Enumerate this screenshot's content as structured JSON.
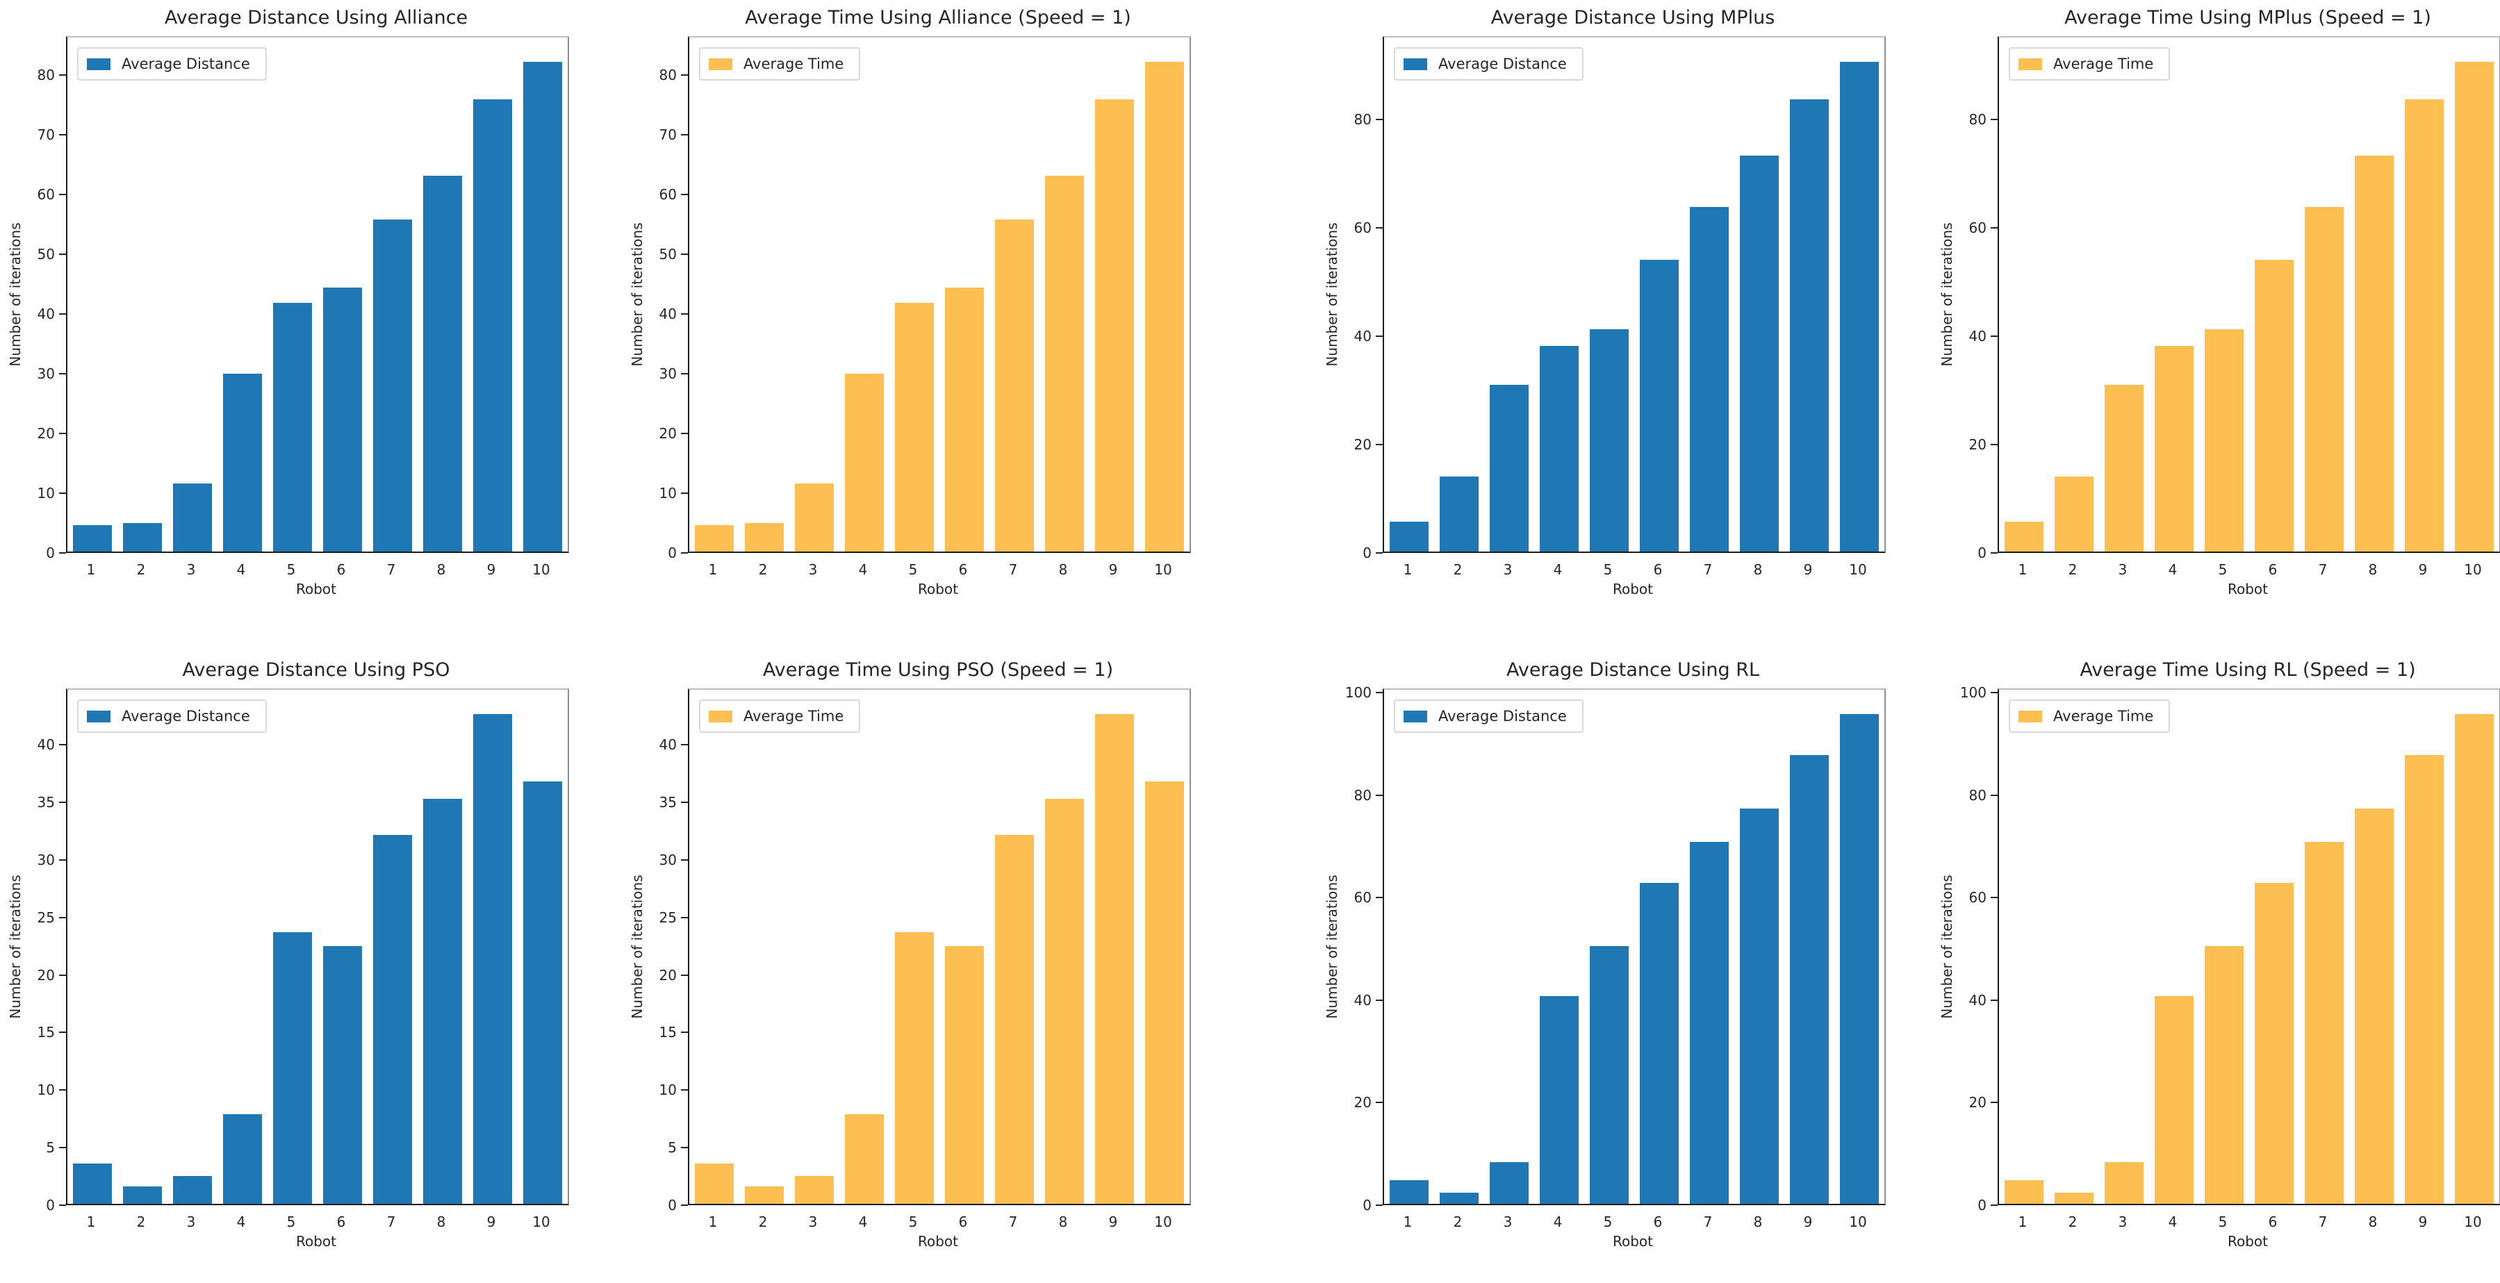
{
  "figure": {
    "background": "#ffffff",
    "text_color": "#262626",
    "spine_color": "#1c1c1c"
  },
  "colors": {
    "distance_blue": "#1f77b4",
    "time_orange": "#fdbf52"
  },
  "chart_data": [
    {
      "id": "alliance-distance",
      "type": "bar",
      "title": "Average Distance Using Alliance",
      "legend": "Average Distance",
      "legend_position": "upper left",
      "color": "#1f77b4",
      "xlabel": "Robot",
      "ylabel": "Number of iterations",
      "categories": [
        "1",
        "2",
        "3",
        "4",
        "5",
        "6",
        "7",
        "8",
        "9",
        "10"
      ],
      "values": [
        4.4,
        4.8,
        11.4,
        29.9,
        41.9,
        44.4,
        55.9,
        63.2,
        76.1,
        82.4
      ],
      "yticks": [
        0,
        10,
        20,
        30,
        40,
        50,
        60,
        70,
        80
      ],
      "ylim": [
        0,
        86.5
      ],
      "grid": false
    },
    {
      "id": "alliance-time",
      "type": "bar",
      "title": "Average Time Using Alliance (Speed = 1)",
      "legend": "Average Time",
      "legend_position": "upper left",
      "color": "#fdbf52",
      "xlabel": "Robot",
      "ylabel": "Number of iterations",
      "categories": [
        "1",
        "2",
        "3",
        "4",
        "5",
        "6",
        "7",
        "8",
        "9",
        "10"
      ],
      "values": [
        4.4,
        4.8,
        11.4,
        29.9,
        41.9,
        44.4,
        55.9,
        63.2,
        76.1,
        82.4
      ],
      "yticks": [
        0,
        10,
        20,
        30,
        40,
        50,
        60,
        70,
        80
      ],
      "ylim": [
        0,
        86.5
      ],
      "grid": false
    },
    {
      "id": "mplus-distance",
      "type": "bar",
      "title": "Average Distance Using MPlus",
      "legend": "Average Distance",
      "legend_position": "upper left",
      "color": "#1f77b4",
      "xlabel": "Robot",
      "ylabel": "Number of iterations",
      "categories": [
        "1",
        "2",
        "3",
        "4",
        "5",
        "6",
        "7",
        "8",
        "9",
        "10"
      ],
      "values": [
        5.5,
        13.9,
        31.0,
        38.2,
        41.3,
        54.1,
        63.9,
        73.5,
        83.9,
        90.9
      ],
      "yticks": [
        0,
        20,
        40,
        60,
        80
      ],
      "ylim": [
        0,
        95.4
      ],
      "grid": false
    },
    {
      "id": "mplus-time",
      "type": "bar",
      "title": "Average Time Using MPlus (Speed = 1)",
      "legend": "Average Time",
      "legend_position": "upper left",
      "color": "#fdbf52",
      "xlabel": "Robot",
      "ylabel": "Number of iterations",
      "categories": [
        "1",
        "2",
        "3",
        "4",
        "5",
        "6",
        "7",
        "8",
        "9",
        "10"
      ],
      "values": [
        5.5,
        13.9,
        31.0,
        38.2,
        41.3,
        54.1,
        63.9,
        73.5,
        83.9,
        90.9
      ],
      "yticks": [
        0,
        20,
        40,
        60,
        80
      ],
      "ylim": [
        0,
        95.4
      ],
      "grid": false
    },
    {
      "id": "pso-distance",
      "type": "bar",
      "title": "Average Distance Using PSO",
      "legend": "Average Distance",
      "legend_position": "upper left",
      "color": "#1f77b4",
      "xlabel": "Robot",
      "ylabel": "Number of iterations",
      "categories": [
        "1",
        "2",
        "3",
        "4",
        "5",
        "6",
        "7",
        "8",
        "9",
        "10"
      ],
      "values": [
        3.5,
        1.5,
        2.4,
        7.8,
        23.7,
        22.5,
        32.2,
        35.4,
        42.8,
        36.9
      ],
      "yticks": [
        0,
        5,
        10,
        15,
        20,
        25,
        30,
        35,
        40
      ],
      "ylim": [
        0,
        44.9
      ],
      "grid": false
    },
    {
      "id": "pso-time",
      "type": "bar",
      "title": "Average Time Using PSO (Speed = 1)",
      "legend": "Average Time",
      "legend_position": "upper left",
      "color": "#fdbf52",
      "xlabel": "Robot",
      "ylabel": "Number of iterations",
      "categories": [
        "1",
        "2",
        "3",
        "4",
        "5",
        "6",
        "7",
        "8",
        "9",
        "10"
      ],
      "values": [
        3.5,
        1.5,
        2.4,
        7.8,
        23.7,
        22.5,
        32.2,
        35.4,
        42.8,
        36.9
      ],
      "yticks": [
        0,
        5,
        10,
        15,
        20,
        25,
        30,
        35,
        40
      ],
      "ylim": [
        0,
        44.9
      ],
      "grid": false
    },
    {
      "id": "rl-distance",
      "type": "bar",
      "title": "Average Distance Using RL",
      "legend": "Average Distance",
      "legend_position": "upper left",
      "color": "#1f77b4",
      "xlabel": "Robot",
      "ylabel": "Number of iterations",
      "categories": [
        "1",
        "2",
        "3",
        "4",
        "5",
        "6",
        "7",
        "8",
        "9",
        "10"
      ],
      "values": [
        4.6,
        2.2,
        8.2,
        40.7,
        50.5,
        63.0,
        71.0,
        77.5,
        88.0,
        96.0
      ],
      "yticks": [
        0,
        20,
        40,
        60,
        80,
        100
      ],
      "ylim": [
        0,
        100.8
      ],
      "grid": false
    },
    {
      "id": "rl-time",
      "type": "bar",
      "title": "Average Time Using RL (Speed = 1)",
      "legend": "Average Time",
      "legend_position": "upper left",
      "color": "#fdbf52",
      "xlabel": "Robot",
      "ylabel": "Number of iterations",
      "categories": [
        "1",
        "2",
        "3",
        "4",
        "5",
        "6",
        "7",
        "8",
        "9",
        "10"
      ],
      "values": [
        4.6,
        2.2,
        8.2,
        40.7,
        50.5,
        63.0,
        71.0,
        77.5,
        88.0,
        96.0
      ],
      "yticks": [
        0,
        20,
        40,
        60,
        80,
        100
      ],
      "ylim": [
        0,
        100.8
      ],
      "grid": false
    }
  ]
}
